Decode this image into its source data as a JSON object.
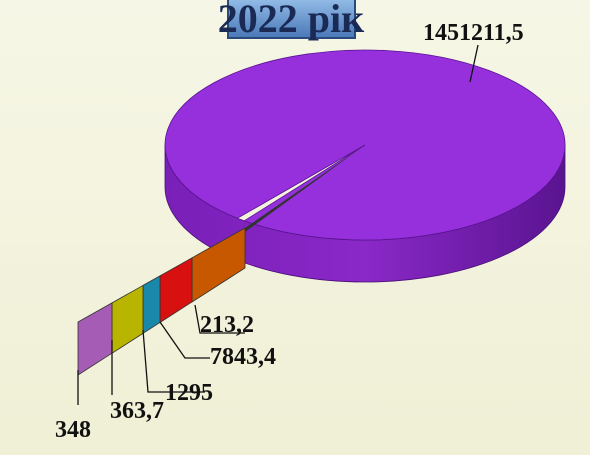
{
  "chart_data": {
    "type": "pie3d",
    "title": "2022 рік",
    "values": [
      1451211.5,
      213.2,
      7843.4,
      1295,
      363.7,
      348
    ],
    "value_labels": [
      "1451211,5",
      "213,2",
      "7843,4",
      "1295",
      "363,7",
      "348"
    ],
    "colors": [
      "#9530dc",
      "#c85800",
      "#d81010",
      "#1a88aa",
      "#b8b400",
      "#a45cb4"
    ]
  }
}
